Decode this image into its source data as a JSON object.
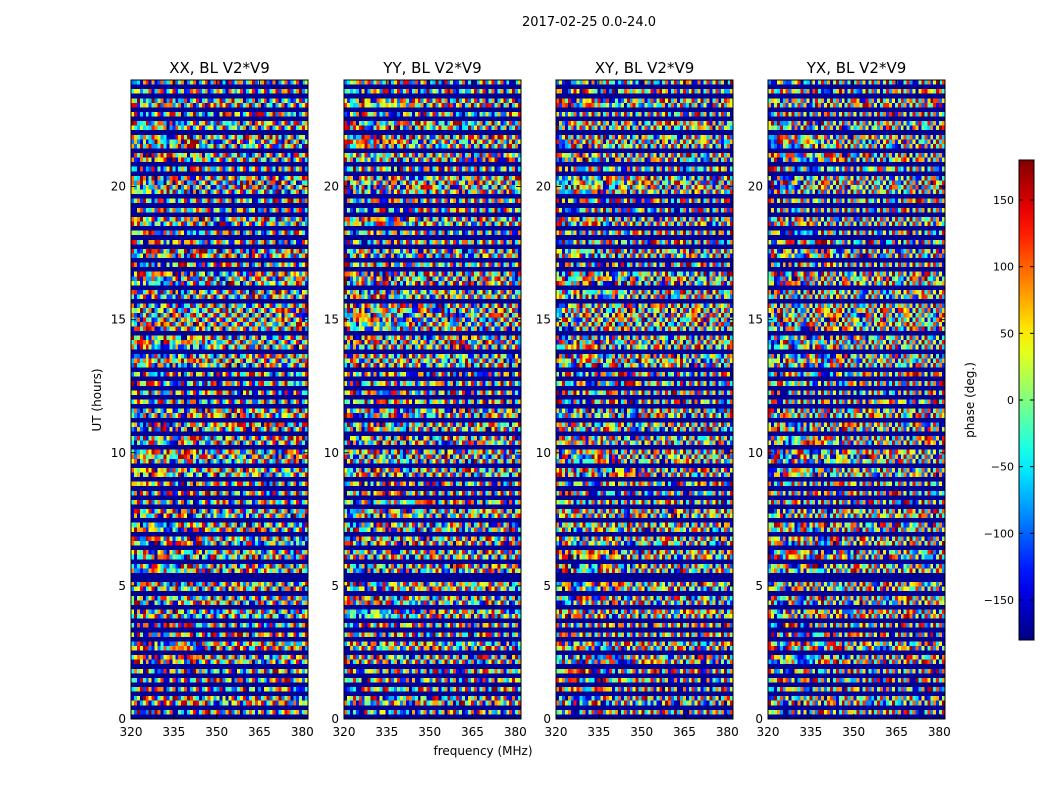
{
  "chart_data": {
    "type": "heatmap",
    "suptitle": "2017-02-25 0.0-24.0",
    "xlabel": "frequency (MHz)",
    "ylabel": "UT (hours)",
    "xlim": [
      320,
      382
    ],
    "ylim": [
      0,
      24
    ],
    "xticks": [
      320,
      335,
      350,
      365,
      380
    ],
    "yticks": [
      0,
      5,
      10,
      15,
      20
    ],
    "panels": [
      {
        "title": "XX, BL V2*V9",
        "seed": 11
      },
      {
        "title": "YY, BL V2*V9",
        "seed": 23
      },
      {
        "title": "XY, BL V2*V9",
        "seed": 37
      },
      {
        "title": "YX, BL V2*V9",
        "seed": 53
      }
    ],
    "colorbar": {
      "label": "phase (deg.)",
      "range": [
        -180,
        180
      ],
      "ticks": [
        150,
        100,
        50,
        0,
        -50,
        -100,
        -150
      ],
      "tick_labels": [
        "150",
        "100",
        "50",
        "0",
        "−50",
        "−100",
        "−150"
      ],
      "colormap": "jet"
    },
    "flagged_rows_hours": [
      0.15,
      0.55,
      0.95,
      1.35,
      1.75,
      2.05,
      2.55,
      3.05,
      3.45,
      3.85,
      4.25,
      4.75,
      5.25,
      5.55,
      6.05,
      6.55,
      7.05,
      7.55,
      8.05,
      8.45,
      8.75,
      9.15,
      9.65,
      10.35,
      10.75,
      11.25,
      11.75,
      12.15,
      12.55,
      12.85,
      13.15,
      13.85,
      14.55,
      15.75,
      16.25,
      16.95,
      17.35,
      17.85,
      18.2,
      18.55,
      18.95,
      19.35,
      19.65,
      20.55,
      20.85,
      21.45,
      22.05,
      22.55,
      23.05,
      23.45,
      23.85
    ]
  }
}
